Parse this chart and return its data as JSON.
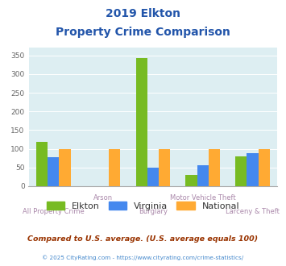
{
  "title_line1": "2019 Elkton",
  "title_line2": "Property Crime Comparison",
  "categories": [
    "All Property Crime",
    "Arson",
    "Burglary",
    "Motor Vehicle Theft",
    "Larceny & Theft"
  ],
  "elkton": [
    118,
    0,
    343,
    30,
    80
  ],
  "virginia": [
    78,
    0,
    50,
    57,
    88
  ],
  "national": [
    100,
    100,
    100,
    100,
    100
  ],
  "elkton_color": "#77bb22",
  "virginia_color": "#4488ee",
  "national_color": "#ffaa33",
  "bg_color": "#ddeef2",
  "title_color": "#2255aa",
  "xlabel_color_even": "#aa88aa",
  "xlabel_color_odd": "#aa88aa",
  "legend_label_color": "#333333",
  "footer_text": "Compared to U.S. average. (U.S. average equals 100)",
  "footer2_text": "© 2025 CityRating.com - https://www.cityrating.com/crime-statistics/",
  "footer_color": "#993300",
  "footer2_color": "#4488cc",
  "ylim": [
    0,
    370
  ],
  "yticks": [
    0,
    50,
    100,
    150,
    200,
    250,
    300,
    350
  ],
  "bar_width": 0.23,
  "group_positions": [
    0,
    1,
    2,
    3,
    4
  ]
}
